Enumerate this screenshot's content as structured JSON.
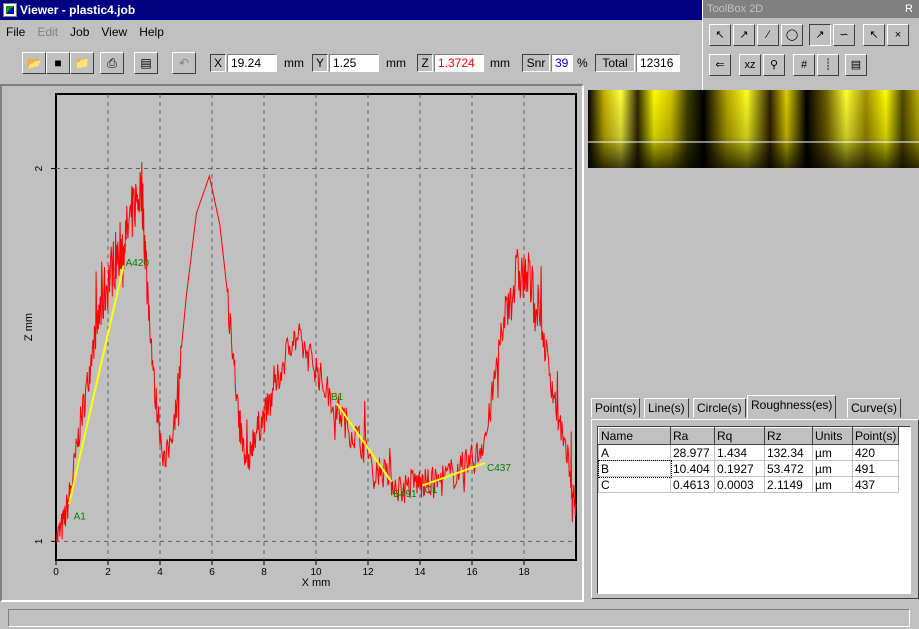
{
  "window": {
    "title": "Viewer - plastic4.job"
  },
  "menu": [
    "File",
    "Edit",
    "Job",
    "View",
    "Help"
  ],
  "toolbar": {
    "x_label": "X",
    "x_value": "19.24",
    "x_unit": "mm",
    "y_label": "Y",
    "y_value": "1.25",
    "y_unit": "mm",
    "z_label": "Z",
    "z_value": "1.3724",
    "z_unit": "mm",
    "snr_label": "Snr",
    "snr_value": "39",
    "snr_unit": "%",
    "total_label": "Total",
    "total_value": "12316",
    "z_color": "#ff0000",
    "snr_color": "#0000ff"
  },
  "toolbox": {
    "title": "ToolBox 2D",
    "edge_label": "R"
  },
  "tabs": [
    "Point(s)",
    "Line(s)",
    "Circle(s)",
    "Roughness(es)",
    "Curve(s)"
  ],
  "active_tab": 3,
  "roughness": {
    "columns": [
      "Name",
      "Ra",
      "Rq",
      "Rz",
      "Units",
      "Point(s)"
    ],
    "rows": [
      [
        "A",
        "28.977",
        "1.434",
        "132.34",
        "µm",
        "420"
      ],
      [
        "B",
        "10.404",
        "0.1927",
        "53.472",
        "µm",
        "491"
      ],
      [
        "C",
        "0.4613",
        "0.0003",
        "2.1149",
        "µm",
        "437"
      ]
    ]
  },
  "chart_data": {
    "type": "line",
    "xlabel": "X mm",
    "ylabel": "Z mm",
    "xlim": [
      0,
      20
    ],
    "ylim": [
      0.95,
      2.2
    ],
    "xticks": [
      "0",
      "2",
      "4",
      "6",
      "8",
      "10",
      "12",
      "14",
      "16",
      "18"
    ],
    "yticks": [
      "1",
      "2"
    ],
    "grid": true,
    "profile_color": "#ff0000",
    "fit_color": "#ffff00",
    "marker_color": "#008000",
    "profile": [
      [
        0,
        1.0
      ],
      [
        0.3,
        1.05
      ],
      [
        0.6,
        1.15
      ],
      [
        0.9,
        1.3
      ],
      [
        1.2,
        1.42
      ],
      [
        1.5,
        1.55
      ],
      [
        1.8,
        1.65
      ],
      [
        2.1,
        1.72
      ],
      [
        2.4,
        1.78
      ],
      [
        2.7,
        1.82
      ],
      [
        3.0,
        1.9
      ],
      [
        3.3,
        1.95
      ],
      [
        3.5,
        1.7
      ],
      [
        3.8,
        1.4
      ],
      [
        4.2,
        1.2
      ],
      [
        4.6,
        1.35
      ],
      [
        5.0,
        1.65
      ],
      [
        5.4,
        1.88
      ],
      [
        5.9,
        1.98
      ],
      [
        6.3,
        1.85
      ],
      [
        6.7,
        1.6
      ],
      [
        7.0,
        1.35
      ],
      [
        7.3,
        1.2
      ],
      [
        7.6,
        1.28
      ],
      [
        7.9,
        1.32
      ],
      [
        8.3,
        1.38
      ],
      [
        8.7,
        1.47
      ],
      [
        9.1,
        1.55
      ],
      [
        9.5,
        1.52
      ],
      [
        9.9,
        1.48
      ],
      [
        10.3,
        1.42
      ],
      [
        10.8,
        1.36
      ],
      [
        11.3,
        1.3
      ],
      [
        11.8,
        1.26
      ],
      [
        12.3,
        1.2
      ],
      [
        12.8,
        1.17
      ],
      [
        13.3,
        1.14
      ],
      [
        13.8,
        1.16
      ],
      [
        14.2,
        1.15
      ],
      [
        14.7,
        1.16
      ],
      [
        15.2,
        1.18
      ],
      [
        15.7,
        1.2
      ],
      [
        16.2,
        1.23
      ],
      [
        16.6,
        1.3
      ],
      [
        17.0,
        1.5
      ],
      [
        17.4,
        1.65
      ],
      [
        17.8,
        1.72
      ],
      [
        18.2,
        1.7
      ],
      [
        18.6,
        1.6
      ],
      [
        19.0,
        1.45
      ],
      [
        19.4,
        1.3
      ],
      [
        19.8,
        1.17
      ],
      [
        20.0,
        1.1
      ]
    ],
    "fits": [
      {
        "from": [
          0.5,
          1.1
        ],
        "to": [
          2.6,
          1.74
        ]
      },
      {
        "from": [
          10.8,
          1.37
        ],
        "to": [
          12.9,
          1.16
        ]
      },
      {
        "from": [
          14.1,
          1.15
        ],
        "to": [
          16.5,
          1.21
        ]
      }
    ],
    "markers": [
      {
        "label": "A1",
        "x": 0.6,
        "y": 1.07
      },
      {
        "label": "A420",
        "x": 2.6,
        "y": 1.75
      },
      {
        "label": "B1",
        "x": 10.5,
        "y": 1.39
      },
      {
        "label": "B491",
        "x": 12.9,
        "y": 1.13
      },
      {
        "label": "C1",
        "x": 14.1,
        "y": 1.14
      },
      {
        "label": "C437",
        "x": 16.5,
        "y": 1.2
      }
    ]
  }
}
